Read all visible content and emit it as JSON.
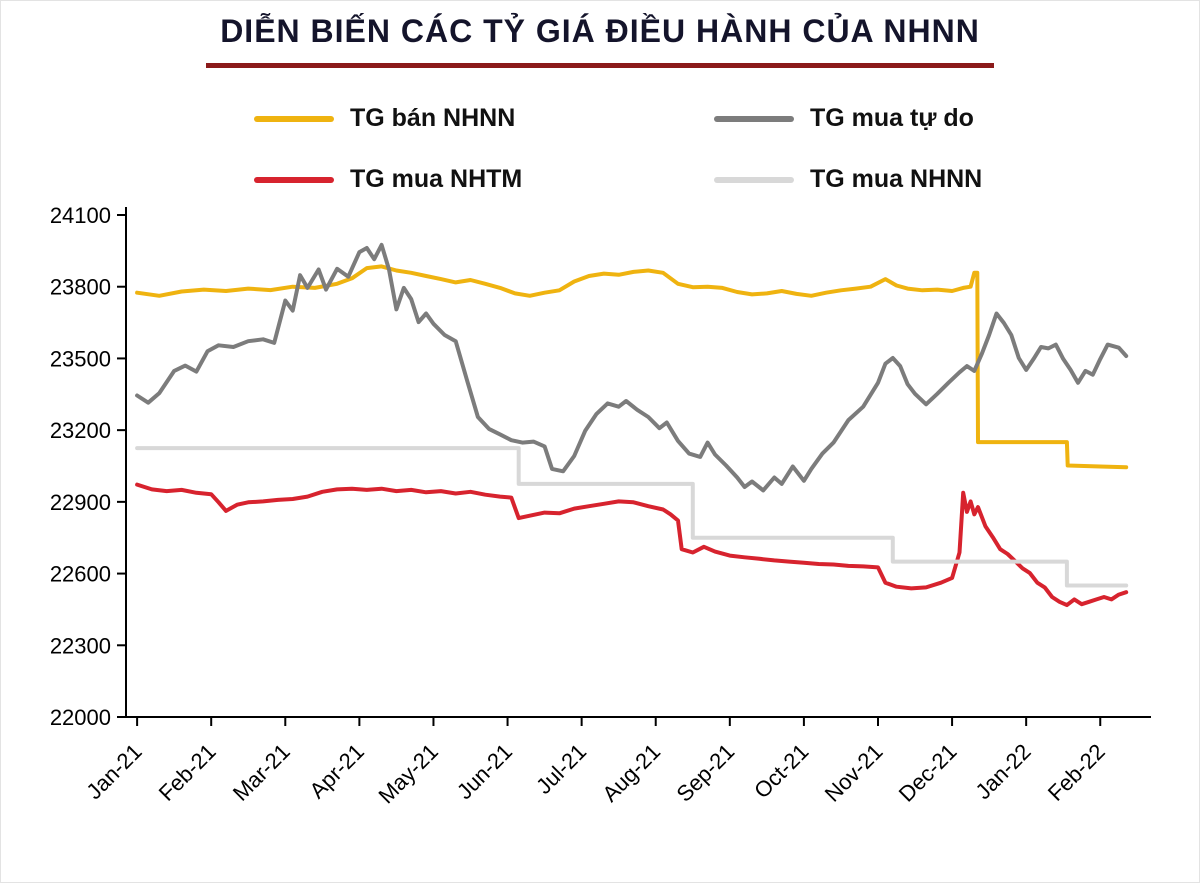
{
  "page": {
    "title": "DIỄN BIẾN CÁC TỶ GIÁ ĐIỀU HÀNH CỦA NHNN"
  },
  "colors": {
    "title_text": "#14142b",
    "title_underline": "#8b1a1a",
    "axis": "#000000"
  },
  "chart_data": {
    "type": "line",
    "title": "DIỄN BIẾN CÁC TỶ GIÁ ĐIỀU HÀNH CỦA NHNN",
    "xlabel": "",
    "ylabel": "",
    "grid": false,
    "legend_position": "top",
    "categories": [
      "Jan-21",
      "Feb-21",
      "Mar-21",
      "Apr-21",
      "May-21",
      "Jun-21",
      "Jul-21",
      "Aug-21",
      "Sep-21",
      "Oct-21",
      "Nov-21",
      "Dec-21",
      "Jan-22",
      "Feb-22"
    ],
    "y_ticks": [
      22000,
      22300,
      22600,
      22900,
      23200,
      23500,
      23800,
      24100
    ],
    "ylim": [
      22000,
      24100
    ],
    "x_range": [
      -0.15,
      13.55
    ],
    "series": [
      {
        "name": "TG bán NHNN",
        "color": "#efb310",
        "points": [
          [
            0,
            23775
          ],
          [
            0.3,
            23762
          ],
          [
            0.6,
            23780
          ],
          [
            0.9,
            23788
          ],
          [
            1.2,
            23782
          ],
          [
            1.5,
            23792
          ],
          [
            1.8,
            23786
          ],
          [
            2.1,
            23800
          ],
          [
            2.4,
            23795
          ],
          [
            2.7,
            23812
          ],
          [
            2.9,
            23835
          ],
          [
            3.1,
            23878
          ],
          [
            3.3,
            23885
          ],
          [
            3.5,
            23868
          ],
          [
            3.7,
            23858
          ],
          [
            3.9,
            23845
          ],
          [
            4.1,
            23832
          ],
          [
            4.3,
            23818
          ],
          [
            4.5,
            23828
          ],
          [
            4.7,
            23812
          ],
          [
            4.9,
            23795
          ],
          [
            5.1,
            23772
          ],
          [
            5.3,
            23762
          ],
          [
            5.5,
            23775
          ],
          [
            5.7,
            23785
          ],
          [
            5.9,
            23822
          ],
          [
            6.1,
            23845
          ],
          [
            6.3,
            23855
          ],
          [
            6.5,
            23850
          ],
          [
            6.7,
            23862
          ],
          [
            6.9,
            23868
          ],
          [
            7.1,
            23858
          ],
          [
            7.3,
            23812
          ],
          [
            7.5,
            23798
          ],
          [
            7.7,
            23800
          ],
          [
            7.9,
            23795
          ],
          [
            8.1,
            23778
          ],
          [
            8.3,
            23768
          ],
          [
            8.5,
            23772
          ],
          [
            8.7,
            23782
          ],
          [
            8.9,
            23770
          ],
          [
            9.1,
            23762
          ],
          [
            9.3,
            23775
          ],
          [
            9.5,
            23785
          ],
          [
            9.7,
            23792
          ],
          [
            9.9,
            23800
          ],
          [
            10.1,
            23832
          ],
          [
            10.25,
            23805
          ],
          [
            10.4,
            23792
          ],
          [
            10.6,
            23785
          ],
          [
            10.8,
            23788
          ],
          [
            11,
            23782
          ],
          [
            11.15,
            23795
          ],
          [
            11.25,
            23800
          ],
          [
            11.3,
            23858
          ],
          [
            11.34,
            23858
          ],
          [
            11.35,
            23150
          ],
          [
            11.8,
            23150
          ],
          [
            12.2,
            23150
          ],
          [
            12.55,
            23150
          ],
          [
            12.56,
            23052
          ],
          [
            13,
            23048
          ],
          [
            13.35,
            23045
          ]
        ]
      },
      {
        "name": "TG mua tự do",
        "color": "#7c7c7c",
        "points": [
          [
            0,
            23345
          ],
          [
            0.15,
            23315
          ],
          [
            0.3,
            23355
          ],
          [
            0.5,
            23448
          ],
          [
            0.65,
            23470
          ],
          [
            0.8,
            23445
          ],
          [
            0.95,
            23530
          ],
          [
            1.1,
            23555
          ],
          [
            1.3,
            23548
          ],
          [
            1.5,
            23572
          ],
          [
            1.7,
            23580
          ],
          [
            1.85,
            23565
          ],
          [
            2,
            23742
          ],
          [
            2.1,
            23700
          ],
          [
            2.2,
            23848
          ],
          [
            2.3,
            23795
          ],
          [
            2.45,
            23872
          ],
          [
            2.55,
            23788
          ],
          [
            2.7,
            23875
          ],
          [
            2.85,
            23842
          ],
          [
            3,
            23945
          ],
          [
            3.1,
            23962
          ],
          [
            3.2,
            23915
          ],
          [
            3.3,
            23975
          ],
          [
            3.4,
            23872
          ],
          [
            3.5,
            23705
          ],
          [
            3.6,
            23795
          ],
          [
            3.7,
            23748
          ],
          [
            3.8,
            23652
          ],
          [
            3.9,
            23688
          ],
          [
            4,
            23645
          ],
          [
            4.15,
            23598
          ],
          [
            4.3,
            23572
          ],
          [
            4.45,
            23412
          ],
          [
            4.6,
            23255
          ],
          [
            4.75,
            23205
          ],
          [
            4.9,
            23182
          ],
          [
            5.05,
            23158
          ],
          [
            5.2,
            23148
          ],
          [
            5.35,
            23152
          ],
          [
            5.5,
            23132
          ],
          [
            5.6,
            23038
          ],
          [
            5.75,
            23028
          ],
          [
            5.9,
            23092
          ],
          [
            6.05,
            23198
          ],
          [
            6.2,
            23268
          ],
          [
            6.35,
            23312
          ],
          [
            6.5,
            23298
          ],
          [
            6.6,
            23322
          ],
          [
            6.75,
            23285
          ],
          [
            6.9,
            23255
          ],
          [
            7.05,
            23208
          ],
          [
            7.15,
            23232
          ],
          [
            7.3,
            23155
          ],
          [
            7.45,
            23102
          ],
          [
            7.6,
            23088
          ],
          [
            7.7,
            23148
          ],
          [
            7.8,
            23098
          ],
          [
            7.95,
            23052
          ],
          [
            8.1,
            23002
          ],
          [
            8.2,
            22962
          ],
          [
            8.3,
            22985
          ],
          [
            8.45,
            22948
          ],
          [
            8.6,
            23002
          ],
          [
            8.7,
            22975
          ],
          [
            8.85,
            23048
          ],
          [
            9,
            22988
          ],
          [
            9.1,
            23038
          ],
          [
            9.25,
            23102
          ],
          [
            9.4,
            23148
          ],
          [
            9.6,
            23242
          ],
          [
            9.8,
            23298
          ],
          [
            10,
            23398
          ],
          [
            10.1,
            23478
          ],
          [
            10.2,
            23502
          ],
          [
            10.3,
            23468
          ],
          [
            10.4,
            23392
          ],
          [
            10.5,
            23352
          ],
          [
            10.65,
            23308
          ],
          [
            10.8,
            23352
          ],
          [
            10.95,
            23398
          ],
          [
            11.1,
            23442
          ],
          [
            11.2,
            23468
          ],
          [
            11.3,
            23448
          ],
          [
            11.4,
            23518
          ],
          [
            11.5,
            23598
          ],
          [
            11.6,
            23688
          ],
          [
            11.7,
            23648
          ],
          [
            11.8,
            23598
          ],
          [
            11.9,
            23502
          ],
          [
            12,
            23452
          ],
          [
            12.1,
            23498
          ],
          [
            12.2,
            23548
          ],
          [
            12.3,
            23542
          ],
          [
            12.4,
            23558
          ],
          [
            12.5,
            23498
          ],
          [
            12.6,
            23452
          ],
          [
            12.7,
            23398
          ],
          [
            12.8,
            23448
          ],
          [
            12.9,
            23432
          ],
          [
            13,
            23498
          ],
          [
            13.1,
            23558
          ],
          [
            13.25,
            23545
          ],
          [
            13.35,
            23510
          ]
        ]
      },
      {
        "name": "TG mua NHTM",
        "color": "#d7232e",
        "points": [
          [
            0,
            22972
          ],
          [
            0.2,
            22952
          ],
          [
            0.4,
            22945
          ],
          [
            0.6,
            22950
          ],
          [
            0.8,
            22938
          ],
          [
            1,
            22932
          ],
          [
            1.1,
            22898
          ],
          [
            1.2,
            22862
          ],
          [
            1.35,
            22888
          ],
          [
            1.5,
            22898
          ],
          [
            1.7,
            22902
          ],
          [
            1.9,
            22908
          ],
          [
            2.1,
            22912
          ],
          [
            2.3,
            22922
          ],
          [
            2.5,
            22942
          ],
          [
            2.7,
            22952
          ],
          [
            2.9,
            22955
          ],
          [
            3.1,
            22950
          ],
          [
            3.3,
            22955
          ],
          [
            3.5,
            22945
          ],
          [
            3.7,
            22950
          ],
          [
            3.9,
            22940
          ],
          [
            4.1,
            22945
          ],
          [
            4.3,
            22935
          ],
          [
            4.5,
            22942
          ],
          [
            4.7,
            22930
          ],
          [
            4.9,
            22922
          ],
          [
            5.05,
            22918
          ],
          [
            5.15,
            22832
          ],
          [
            5.3,
            22842
          ],
          [
            5.5,
            22855
          ],
          [
            5.7,
            22852
          ],
          [
            5.9,
            22872
          ],
          [
            6.1,
            22882
          ],
          [
            6.3,
            22892
          ],
          [
            6.5,
            22902
          ],
          [
            6.7,
            22898
          ],
          [
            6.9,
            22882
          ],
          [
            7.1,
            22868
          ],
          [
            7.2,
            22848
          ],
          [
            7.3,
            22822
          ],
          [
            7.35,
            22702
          ],
          [
            7.5,
            22688
          ],
          [
            7.65,
            22712
          ],
          [
            7.8,
            22692
          ],
          [
            8,
            22675
          ],
          [
            8.2,
            22668
          ],
          [
            8.4,
            22662
          ],
          [
            8.6,
            22655
          ],
          [
            8.8,
            22650
          ],
          [
            9,
            22645
          ],
          [
            9.2,
            22640
          ],
          [
            9.4,
            22638
          ],
          [
            9.6,
            22632
          ],
          [
            9.8,
            22630
          ],
          [
            10,
            22626
          ],
          [
            10.1,
            22562
          ],
          [
            10.25,
            22545
          ],
          [
            10.45,
            22538
          ],
          [
            10.65,
            22542
          ],
          [
            10.85,
            22562
          ],
          [
            11,
            22582
          ],
          [
            11.1,
            22688
          ],
          [
            11.15,
            22938
          ],
          [
            11.2,
            22858
          ],
          [
            11.25,
            22902
          ],
          [
            11.3,
            22848
          ],
          [
            11.35,
            22878
          ],
          [
            11.45,
            22798
          ],
          [
            11.55,
            22752
          ],
          [
            11.65,
            22702
          ],
          [
            11.75,
            22682
          ],
          [
            11.85,
            22652
          ],
          [
            11.95,
            22622
          ],
          [
            12.05,
            22602
          ],
          [
            12.15,
            22562
          ],
          [
            12.25,
            22542
          ],
          [
            12.35,
            22502
          ],
          [
            12.45,
            22482
          ],
          [
            12.55,
            22468
          ],
          [
            12.65,
            22492
          ],
          [
            12.75,
            22472
          ],
          [
            12.85,
            22482
          ],
          [
            12.95,
            22492
          ],
          [
            13.05,
            22502
          ],
          [
            13.15,
            22492
          ],
          [
            13.25,
            22512
          ],
          [
            13.35,
            22522
          ]
        ]
      },
      {
        "name": "TG mua NHNN",
        "color": "#d8d8d8",
        "points": [
          [
            0,
            23125
          ],
          [
            5.15,
            23125
          ],
          [
            5.15,
            22975
          ],
          [
            7.5,
            22975
          ],
          [
            7.5,
            22750
          ],
          [
            10.2,
            22750
          ],
          [
            10.2,
            22650
          ],
          [
            12.55,
            22650
          ],
          [
            12.55,
            22550
          ],
          [
            13.35,
            22550
          ]
        ]
      }
    ]
  }
}
